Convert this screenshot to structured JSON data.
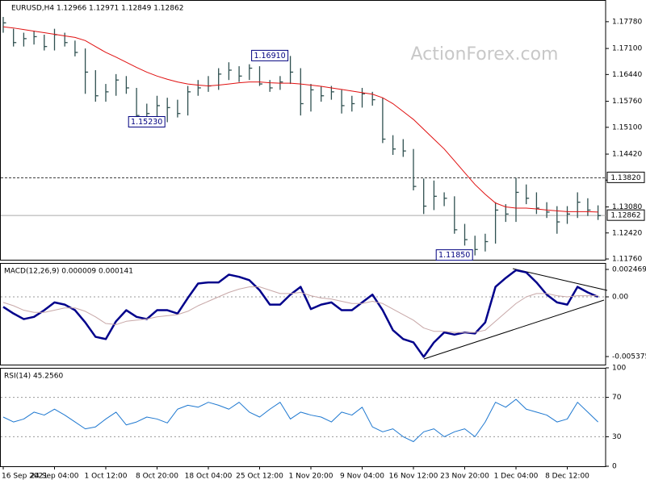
{
  "chart_data": [
    {
      "type": "ohlc",
      "title": "EURUSD,H4 1.12966 1.12971 1.12849 1.12862",
      "watermark": "ActionForex.com",
      "color": "#2f5050",
      "categories": [
        "16 Sep 2021",
        null,
        null,
        null,
        null,
        "24 Sep 04:00",
        null,
        null,
        null,
        null,
        "1 Oct 12:00",
        null,
        null,
        null,
        null,
        "8 Oct 20:00",
        null,
        null,
        null,
        null,
        "18 Oct 04:00",
        null,
        null,
        null,
        null,
        "25 Oct 12:00",
        null,
        null,
        null,
        null,
        "1 Nov 20:00",
        null,
        null,
        null,
        null,
        "9 Nov 04:00",
        null,
        null,
        null,
        null,
        "16 Nov 12:00",
        null,
        null,
        null,
        null,
        "23 Nov 20:00",
        null,
        null,
        null,
        null,
        "1 Dec 04:00",
        null,
        null,
        null,
        null,
        "8 Dec 12:00",
        null,
        null,
        null
      ],
      "high": [
        1.179,
        1.176,
        1.175,
        1.1755,
        1.1745,
        1.176,
        1.175,
        1.173,
        1.171,
        1.1655,
        1.162,
        1.1645,
        1.164,
        1.161,
        1.157,
        1.159,
        1.1585,
        1.158,
        1.1615,
        1.163,
        1.164,
        1.166,
        1.1675,
        1.1665,
        1.167,
        1.1665,
        1.163,
        1.164,
        1.1691,
        1.166,
        1.162,
        1.1615,
        1.1615,
        1.1605,
        1.159,
        1.161,
        1.16,
        1.1585,
        1.149,
        1.148,
        1.1455,
        1.138,
        1.1375,
        1.1345,
        1.1335,
        1.1265,
        1.1235,
        1.124,
        1.132,
        1.1315,
        1.1382,
        1.1365,
        1.1345,
        1.132,
        1.131,
        1.131,
        1.1345,
        1.133,
        1.1312
      ],
      "low": [
        1.175,
        1.1715,
        1.1715,
        1.172,
        1.1705,
        1.1705,
        1.1715,
        1.169,
        1.1595,
        1.1575,
        1.1575,
        1.159,
        1.1595,
        1.153,
        1.1528,
        1.1535,
        1.1523,
        1.1535,
        1.154,
        1.159,
        1.16,
        1.1605,
        1.163,
        1.1625,
        1.163,
        1.1615,
        1.16,
        1.1605,
        1.162,
        1.154,
        1.155,
        1.1575,
        1.158,
        1.1545,
        1.155,
        1.156,
        1.1565,
        1.147,
        1.144,
        1.1435,
        1.135,
        1.129,
        1.13,
        1.131,
        1.124,
        1.121,
        1.1185,
        1.1195,
        1.1215,
        1.127,
        1.127,
        1.1315,
        1.129,
        1.128,
        1.124,
        1.1265,
        1.128,
        1.1285,
        1.1275
      ],
      "close": [
        1.1775,
        1.1725,
        1.1735,
        1.174,
        1.1715,
        1.1745,
        1.1725,
        1.17,
        1.165,
        1.159,
        1.16,
        1.163,
        1.161,
        1.154,
        1.1545,
        1.1565,
        1.156,
        1.1545,
        1.16,
        1.161,
        1.1615,
        1.1645,
        1.1655,
        1.164,
        1.166,
        1.162,
        1.161,
        1.1625,
        1.165,
        1.157,
        1.1605,
        1.159,
        1.16,
        1.1565,
        1.157,
        1.1595,
        1.158,
        1.148,
        1.1455,
        1.145,
        1.136,
        1.131,
        1.1335,
        1.133,
        1.125,
        1.1225,
        1.12,
        1.122,
        1.13,
        1.129,
        1.1345,
        1.133,
        1.1305,
        1.1295,
        1.127,
        1.129,
        1.132,
        1.13,
        1.1286
      ],
      "ma": {
        "color": "#e01010",
        "values": [
          1.1765,
          1.1762,
          1.1758,
          1.1754,
          1.175,
          1.1746,
          1.1742,
          1.1738,
          1.173,
          1.1715,
          1.17,
          1.1688,
          1.1675,
          1.1662,
          1.165,
          1.164,
          1.1632,
          1.1625,
          1.162,
          1.1617,
          1.1615,
          1.1617,
          1.162,
          1.1623,
          1.1625,
          1.1625,
          1.1623,
          1.1622,
          1.1622,
          1.162,
          1.1617,
          1.1614,
          1.161,
          1.1606,
          1.1602,
          1.1598,
          1.1594,
          1.1585,
          1.157,
          1.155,
          1.153,
          1.1505,
          1.148,
          1.1455,
          1.1425,
          1.1395,
          1.1365,
          1.134,
          1.1318,
          1.1308,
          1.1305,
          1.1305,
          1.1303,
          1.13,
          1.1298,
          1.1296,
          1.1296,
          1.1296,
          1.1295
        ]
      },
      "ylim": [
        1.1174,
        1.1833
      ],
      "yticks": [
        {
          "value": 1.1778,
          "label": "1.17780"
        },
        {
          "value": 1.171,
          "label": "1.17100"
        },
        {
          "value": 1.1644,
          "label": "1.16440"
        },
        {
          "value": 1.1576,
          "label": "1.15760"
        },
        {
          "value": 1.151,
          "label": "1.15100"
        },
        {
          "value": 1.1442,
          "label": "1.14420"
        },
        {
          "value": 1.1376,
          "label": "1.13760"
        },
        {
          "value": 1.1308,
          "label": "1.13080"
        },
        {
          "value": 1.1242,
          "label": "1.12420"
        },
        {
          "value": 1.1176,
          "label": "1.11760"
        }
      ],
      "levels": [
        {
          "value": 1.1382,
          "label": "1.13820",
          "style": "dashed"
        },
        {
          "value": 1.12862,
          "label": "1.12862",
          "style": "solid"
        }
      ],
      "annotations": [
        {
          "index": 28,
          "value": 1.1691,
          "label": "1.16910"
        },
        {
          "index": 16,
          "value": 1.1523,
          "label": "1.15230"
        },
        {
          "index": 46,
          "value": 1.1185,
          "label": "1.11850"
        }
      ]
    },
    {
      "type": "line",
      "title": "MACD(12,26,9) 0.000009 0.000141",
      "series": [
        {
          "color": "#00008b",
          "width": 2.5,
          "values": [
            -0.0009,
            -0.0015,
            -0.002,
            -0.0018,
            -0.0012,
            -0.0005,
            -0.0007,
            -0.0012,
            -0.0023,
            -0.0036,
            -0.0038,
            -0.0022,
            -0.0012,
            -0.0018,
            -0.002,
            -0.0012,
            -0.0012,
            -0.0015,
            -0.0001,
            0.0012,
            0.0013,
            0.0013,
            0.002,
            0.0018,
            0.0015,
            0.0006,
            -0.0007,
            -0.0007,
            0.0002,
            0.0009,
            -0.0011,
            -0.0007,
            -0.0005,
            -0.0012,
            -0.0012,
            -0.0005,
            0.0002,
            -0.0012,
            -0.003,
            -0.0038,
            -0.0041,
            -0.0054,
            -0.0041,
            -0.0032,
            -0.0034,
            -0.0032,
            -0.0033,
            -0.0023,
            0.0009,
            0.0017,
            0.0024,
            0.0022,
            0.0013,
            0.0002,
            -0.0005,
            -0.0007,
            0.0009,
            0.0004,
            0.0
          ]
        },
        {
          "color": "#c8a8a8",
          "width": 1,
          "values": [
            -0.0005,
            -0.0008,
            -0.0012,
            -0.0014,
            -0.0014,
            -0.0012,
            -0.001,
            -0.001,
            -0.0013,
            -0.0018,
            -0.0024,
            -0.0025,
            -0.0022,
            -0.0021,
            -0.002,
            -0.0018,
            -0.0017,
            -0.0016,
            -0.0013,
            -0.0008,
            -0.0004,
            0,
            0.0004,
            0.0007,
            0.0009,
            0.0009,
            0.0006,
            0.0003,
            0.0003,
            0.0004,
            0.0001,
            -0.0001,
            -0.0002,
            -0.0004,
            -0.0006,
            -0.0006,
            -0.0004,
            -0.0006,
            -0.0011,
            -0.0016,
            -0.0021,
            -0.0028,
            -0.0031,
            -0.0031,
            -0.0032,
            -0.0032,
            -0.0032,
            -0.003,
            -0.0022,
            -0.0014,
            -0.0006,
            0,
            0.0003,
            0.0003,
            0.0001,
            0,
            0.0001,
            0.0001,
            0.0001
          ]
        }
      ],
      "ylim": [
        -0.0061,
        0.00305
      ],
      "yticks": [
        0.002469,
        {
          "value": 0,
          "label": "0.00"
        },
        -0.005375
      ],
      "levels": [
        0
      ]
    },
    {
      "type": "line",
      "title": "RSI(14) 45.2560",
      "series": [
        {
          "color": "#1e78d0",
          "width": 1,
          "values": [
            50,
            45,
            48,
            55,
            52,
            58,
            52,
            45,
            38,
            40,
            48,
            55,
            42,
            45,
            50,
            48,
            44,
            58,
            62,
            60,
            65,
            62,
            58,
            65,
            55,
            50,
            58,
            65,
            48,
            55,
            52,
            50,
            45,
            55,
            52,
            60,
            40,
            35,
            38,
            30,
            25,
            35,
            38,
            30,
            35,
            38,
            30,
            45,
            65,
            60,
            68,
            58,
            55,
            52,
            45,
            48,
            65,
            55,
            45
          ]
        }
      ],
      "ylim": [
        0,
        100
      ],
      "yticks": [
        100,
        70,
        30,
        0
      ],
      "levels": [
        70,
        30
      ]
    }
  ]
}
